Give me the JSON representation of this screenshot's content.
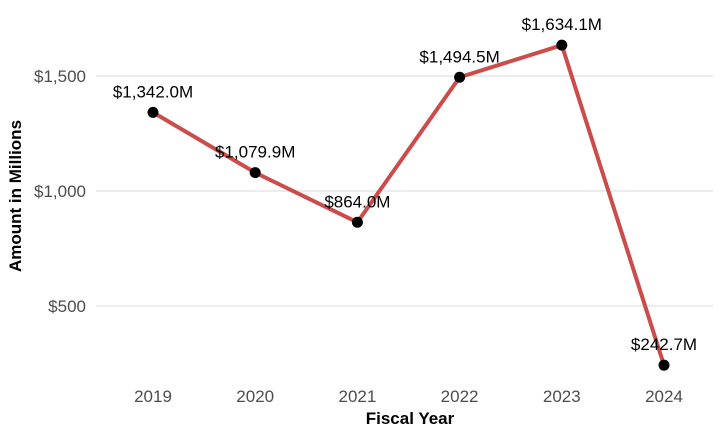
{
  "chart_data": {
    "type": "line",
    "xlabel": "Fiscal Year",
    "ylabel": "Amount in Millions",
    "categories": [
      "2019",
      "2020",
      "2021",
      "2022",
      "2023",
      "2024"
    ],
    "series": [
      {
        "values": [
          1342.0,
          1079.9,
          864.0,
          1494.5,
          1634.1,
          242.7
        ],
        "labels": [
          "$1,342.0M",
          "$1,079.9M",
          "$864.0M",
          "$1,494.5M",
          "$1,634.1M",
          "$242.7M"
        ]
      }
    ],
    "yticks": [
      500,
      1000,
      1500
    ],
    "ytick_labels": [
      "$500",
      "$1,000",
      "$1,500"
    ],
    "ylim": [
      180,
      1700
    ],
    "grid": "horizontal",
    "legend": "none",
    "colors": {
      "line": "#cc4c4c",
      "points": "#000000",
      "grid": "#d9d9d9"
    }
  }
}
